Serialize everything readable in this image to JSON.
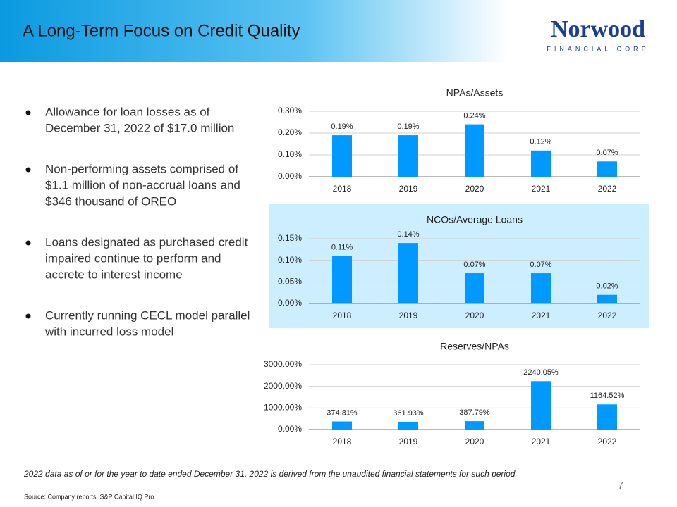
{
  "header": {
    "title": "A Long-Term Focus on Credit Quality",
    "logo": "Norwood",
    "logo_sub": "FINANCIAL CORP"
  },
  "bullets": [
    [
      "Allowance for loan losses as of",
      "December 31, 2022 of $17.0 million"
    ],
    [
      "Non-performing assets comprised of",
      "$1.1 million of non-accrual loans and",
      "$346 thousand of OREO"
    ],
    [
      "Loans designated as purchased credit",
      "impaired continue to perform and",
      "accrete to interest income"
    ],
    [
      "Currently running CECL model parallel",
      "with incurred loss model"
    ]
  ],
  "footnote": "2022 data as of or for the year to date ended December 31, 2022 is derived from the unaudited financial statements for such period.",
  "page_number": "7",
  "source": "Source: Company reports, S&P Capital IQ Pro",
  "chart_data": [
    {
      "type": "bar",
      "title": "NPAs/Assets",
      "categories": [
        "2018",
        "2019",
        "2020",
        "2021",
        "2022"
      ],
      "values": [
        0.19,
        0.19,
        0.24,
        0.12,
        0.07
      ],
      "value_labels": [
        "0.19%",
        "0.19%",
        "0.24%",
        "0.12%",
        "0.07%"
      ],
      "color": "#0099ff",
      "ylim": [
        0,
        0.3
      ],
      "yticks": [
        {
          "value": 0,
          "label": "0.00%"
        },
        {
          "value": 0.1,
          "label": "0.10%"
        },
        {
          "value": 0.2,
          "label": "0.20%"
        },
        {
          "value": 0.3,
          "label": "0.30%"
        }
      ],
      "grid": true
    },
    {
      "type": "bar",
      "title": "NCOs/Average Loans",
      "categories": [
        "2018",
        "2019",
        "2020",
        "2021",
        "2022"
      ],
      "values": [
        0.11,
        0.14,
        0.07,
        0.07,
        0.02
      ],
      "value_labels": [
        "0.11%",
        "0.14%",
        "0.07%",
        "0.07%",
        "0.02%"
      ],
      "color": "#0099ff",
      "ylim": [
        0,
        0.15
      ],
      "yticks": [
        {
          "value": 0,
          "label": "0.00%"
        },
        {
          "value": 0.05,
          "label": "0.05%"
        },
        {
          "value": 0.1,
          "label": "0.10%"
        },
        {
          "value": 0.15,
          "label": "0.15%"
        }
      ],
      "grid": true
    },
    {
      "type": "bar",
      "title": "Reserves/NPAs",
      "categories": [
        "2018",
        "2019",
        "2020",
        "2021",
        "2022"
      ],
      "values": [
        374.81,
        361.93,
        387.79,
        2240.05,
        1164.52
      ],
      "value_labels": [
        "374.81%",
        "361.93%",
        "387.79%",
        "2240.05%",
        "1164.52%"
      ],
      "color": "#0099ff",
      "ylim": [
        0,
        3000
      ],
      "yticks": [
        {
          "value": 0,
          "label": "0.00%"
        },
        {
          "value": 1000,
          "label": "1000.00%"
        },
        {
          "value": 2000,
          "label": "2000.00%"
        },
        {
          "value": 3000,
          "label": "3000.00%"
        }
      ],
      "grid": true
    }
  ]
}
